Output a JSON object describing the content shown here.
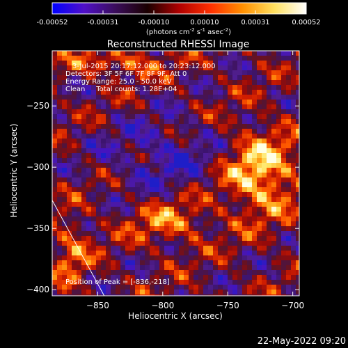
{
  "colorbar": {
    "ticks": [
      "-0.00052",
      "-0.00031",
      "-0.00010",
      "0.00010",
      "0.00031",
      "0.00052"
    ],
    "units_main": "(photons cm",
    "units_exp1": "-2",
    "units_mid1": " s",
    "units_exp2": "-1",
    "units_mid2": " asec",
    "units_exp3": "-2",
    "units_end": ")",
    "stops": [
      "#0000ff",
      "#5010c8",
      "#3a0d5a",
      "#1a0000",
      "#b00000",
      "#ff3000",
      "#ff9000",
      "#ffe060",
      "#ffffff"
    ]
  },
  "chart_data": {
    "type": "heatmap",
    "title": "Reconstructed RHESSI Image",
    "xlabel": "Heliocentric X (arcsec)",
    "ylabel": "Heliocentric Y (arcsec)",
    "xlim": [
      -885,
      -695
    ],
    "ylim": [
      -405,
      -205
    ],
    "xticks": [
      -850,
      -800,
      -750,
      -700
    ],
    "xtick_labels": [
      "−850",
      "−800",
      "−750",
      "−700"
    ],
    "yticks": [
      -250,
      -300,
      -350,
      -400
    ],
    "ytick_labels": [
      "−250",
      "−300",
      "−350",
      "−400"
    ],
    "peak": [
      -836,
      -218
    ],
    "limb_line": [
      [
        -885,
        -327
      ],
      [
        -845,
        -405
      ]
    ],
    "annotations": [
      "3-Jul-2015 20:17:12.000 to 20:23:12.000",
      "Detectors: 3F 5F 6F 7F 8F 9F, Att 0",
      "Energy Range: 25.0 - 50.0 keV",
      "Clean     Total counts: 1.28E+04"
    ],
    "peak_label": "Position of Peak = [-836,-218]"
  },
  "footer": {
    "date": "22-May-2022 09:20"
  }
}
